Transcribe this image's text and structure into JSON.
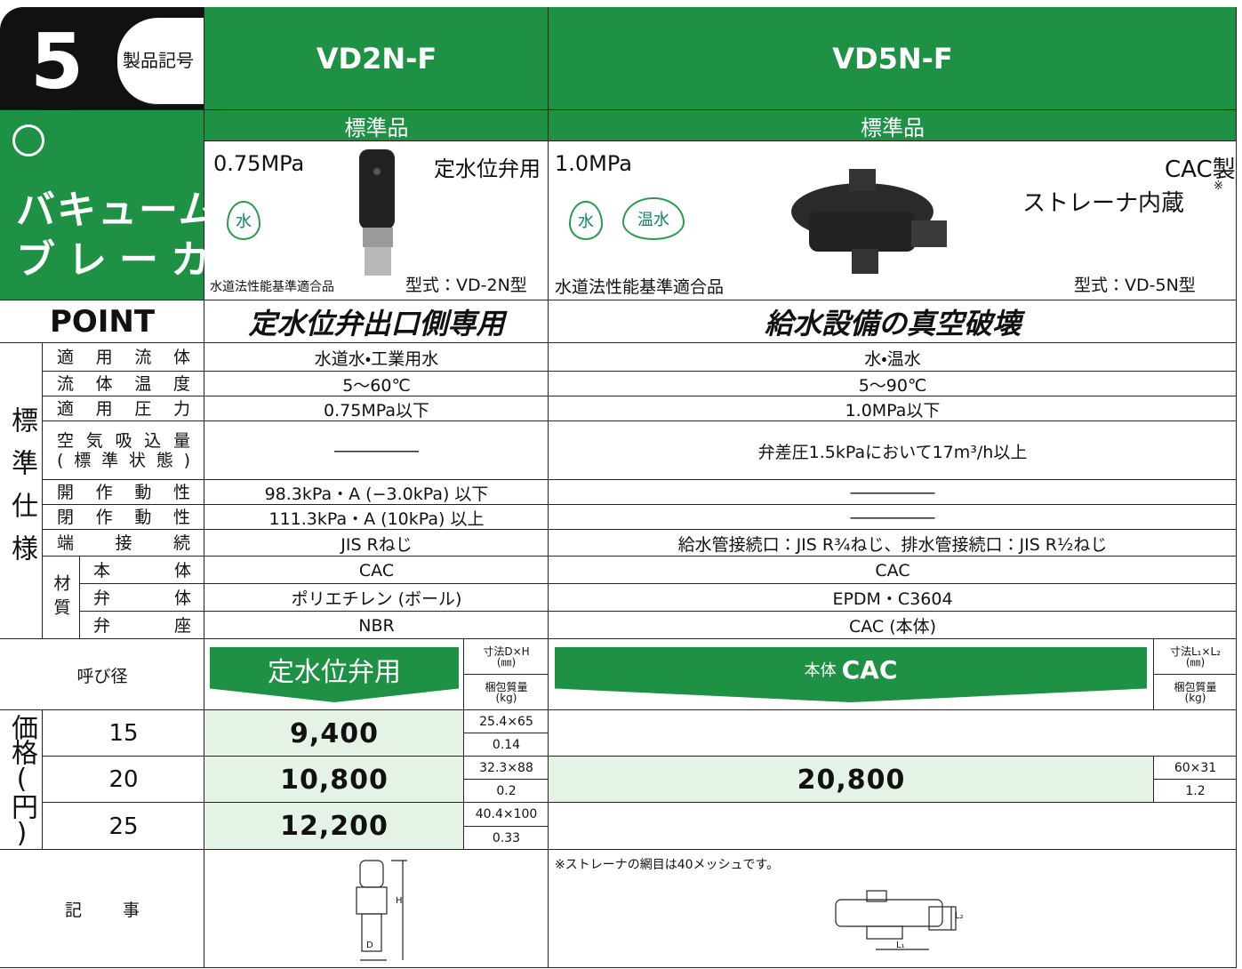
{
  "header": {
    "number": "5",
    "code_label": "製品記号",
    "category": [
      "バキューム",
      "ブレーカ"
    ],
    "models": [
      "VD2N-F",
      "VD5N-F"
    ],
    "grades": [
      "標準品",
      "標準品"
    ]
  },
  "products": [
    {
      "pressure": "0.75MPa",
      "use": "定水位弁用",
      "fluids": [
        "水"
      ],
      "cert": "水道法性能基準適合品",
      "model": "型式：VD-2N型"
    },
    {
      "pressure": "1.0MPa",
      "material_note": "CAC製",
      "strainer": "ストレーナ内蔵",
      "mark": "※",
      "fluids": [
        "水",
        "温水"
      ],
      "cert": "水道法性能基準適合品",
      "model": "型式：VD-5N型"
    }
  ],
  "point": {
    "label": "POINT",
    "values": [
      "定水位弁出口側専用",
      "給水設備の真空破壊"
    ]
  },
  "spec": {
    "group_label": "標準仕様",
    "rows": [
      {
        "label": "適用流体",
        "values": [
          "水道水・工業用水",
          "水・温水"
        ]
      },
      {
        "label": "流体温度",
        "values": [
          "5～60℃",
          "5～90℃"
        ]
      },
      {
        "label": "適用圧力",
        "values": [
          "0.75MPa以下",
          "1.0MPa以下"
        ]
      },
      {
        "label": "空気吸込量",
        "label_sub": "(標準状態)",
        "values": [
          "―――――",
          "弁差圧1.5kPaにおいて17m³/h以上"
        ]
      },
      {
        "label": "開作動性",
        "values": [
          "98.3kPa・A (−3.0kPa) 以下",
          "―――――"
        ]
      },
      {
        "label": "閉作動性",
        "values": [
          "111.3kPa・A (10kPa) 以上",
          "―――――"
        ]
      },
      {
        "label": "端接続",
        "values": [
          "JIS Rねじ",
          "給水管接続口：JIS R¾ねじ、排水管接続口：JIS R½ねじ"
        ]
      }
    ],
    "materials": {
      "label": "材質",
      "rows": [
        {
          "label": "本体",
          "values": [
            "CAC",
            "CAC"
          ]
        },
        {
          "label": "弁体",
          "values": [
            "ポリエチレン (ボール)",
            "EPDM・C3604"
          ]
        },
        {
          "label": "弁座",
          "values": [
            "NBR",
            "CAC (本体)"
          ]
        }
      ]
    }
  },
  "prices": {
    "nominal_label": "呼び径",
    "group_label": "価格(円)",
    "banners": [
      {
        "text": "定水位弁用"
      },
      {
        "prefix": "本体",
        "material": "CAC"
      }
    ],
    "dim_headers": [
      {
        "dim": "寸法D×H",
        "dim_unit": "(㎜)",
        "weight": "梱包質量",
        "weight_unit": "(kg)"
      },
      {
        "dim": "寸法L₁×L₂",
        "dim_unit": "(㎜)",
        "weight": "梱包質量",
        "weight_unit": "(kg)"
      }
    ],
    "rows": [
      {
        "size": "15",
        "price": "9,400",
        "dim": "25.4×65",
        "weight": "0.14"
      },
      {
        "size": "20",
        "price": "10,800",
        "dim": "32.3×88",
        "weight": "0.2"
      },
      {
        "size": "25",
        "price": "12,200",
        "dim": "40.4×100",
        "weight": "0.33"
      }
    ],
    "vd5": {
      "price": "20,800",
      "dim": "60×31",
      "weight": "1.2"
    }
  },
  "notes": {
    "label": "記事",
    "note": "※ストレーナの網目は40メッシュです。",
    "drawing_labels": [
      "D",
      "H",
      "L₁",
      "L₂"
    ]
  }
}
